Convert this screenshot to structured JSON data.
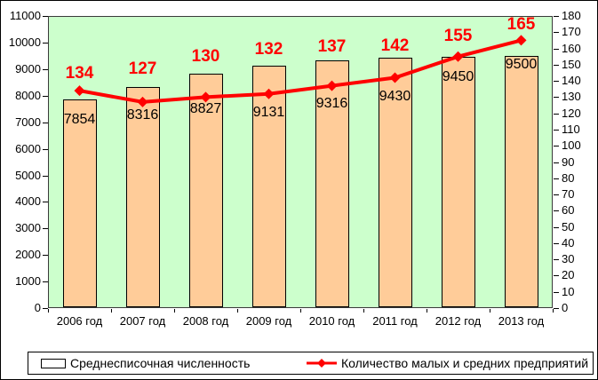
{
  "chart_data": {
    "type": "bar",
    "subtype": "bar-and-line-combo",
    "categories": [
      "2006 год",
      "2007 год",
      "2008 год",
      "2009 год",
      "2010 год",
      "2011 год",
      "2012 год",
      "2013 год"
    ],
    "series": [
      {
        "name": "Среднесписочная численность",
        "type": "bar",
        "axis": "left",
        "values": [
          7854,
          8316,
          8827,
          9131,
          9316,
          9430,
          9450,
          9500
        ],
        "fill_color": "#ffcc99",
        "border_color": "#000000",
        "label_color": "#000000"
      },
      {
        "name": "Количество малых и средних предприятий",
        "type": "line",
        "axis": "right",
        "values": [
          134,
          127,
          130,
          132,
          137,
          142,
          155,
          165
        ],
        "line_color": "#ff0000",
        "marker": "diamond",
        "label_color": "#ff0000"
      }
    ],
    "left_axis": {
      "min": 0,
      "max": 11000,
      "step": 1000
    },
    "right_axis": {
      "min": 0,
      "max": 180,
      "step": 10
    },
    "plot_background": "#ccffcc",
    "grid": false,
    "legend_position": "bottom",
    "title": ""
  },
  "legend": {
    "items": [
      {
        "label": "Среднесписочная численность",
        "swatch": "bar"
      },
      {
        "label": "Количество малых и средних предприятий",
        "swatch": "line"
      }
    ]
  }
}
